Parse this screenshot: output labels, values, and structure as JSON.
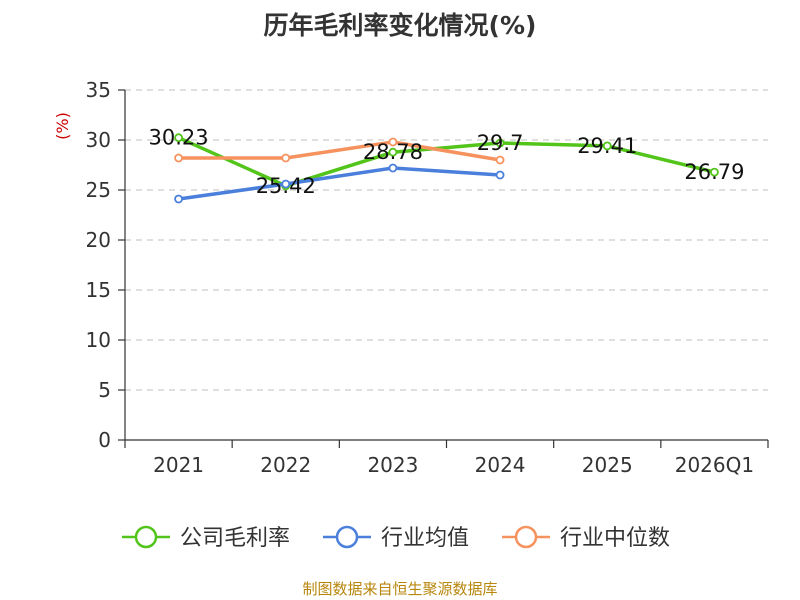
{
  "chart_data": {
    "type": "line",
    "title": "历年毛利率变化情况(%)",
    "ylabel": "(%)",
    "categories": [
      "2021",
      "2022",
      "2023",
      "2024",
      "2025",
      "2026Q1"
    ],
    "ylim": [
      0,
      35
    ],
    "yticks": [
      0,
      5,
      10,
      15,
      20,
      25,
      30,
      35
    ],
    "grid": true,
    "legend_position": "bottom",
    "series": [
      {
        "name": "公司毛利率",
        "color": "#52c41a",
        "values": [
          30.23,
          25.42,
          28.78,
          29.7,
          29.41,
          26.79
        ],
        "labels": [
          "30.23",
          "25.42",
          "28.78",
          "29.7",
          "29.41",
          "26.79"
        ]
      },
      {
        "name": "行业均值",
        "color": "#4a7fdc",
        "values": [
          24.1,
          25.6,
          27.2,
          26.5,
          null,
          null
        ]
      },
      {
        "name": "行业中位数",
        "color": "#f5925e",
        "values": [
          28.2,
          28.2,
          29.8,
          28.0,
          null,
          null
        ]
      }
    ]
  },
  "footer": {
    "source": "制图数据来自恒生聚源数据库"
  }
}
